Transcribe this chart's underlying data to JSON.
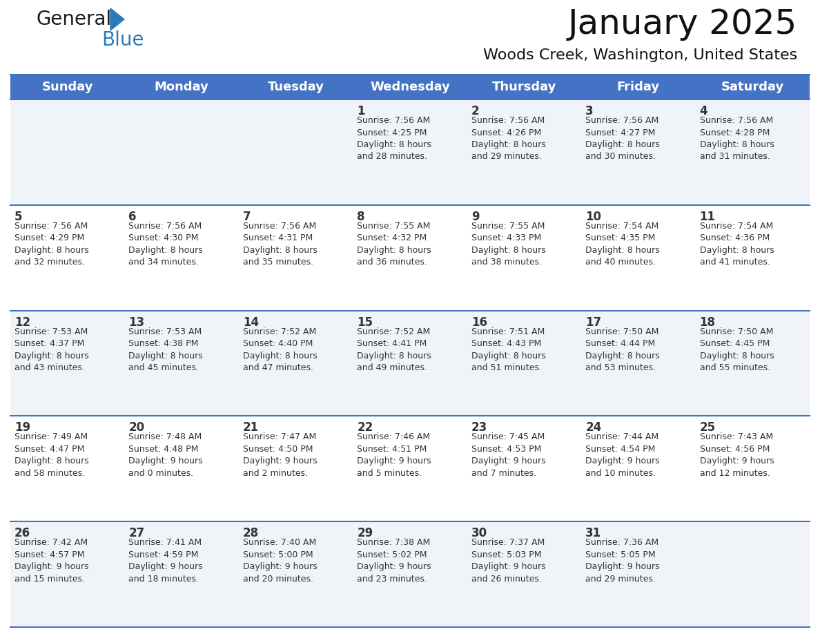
{
  "title": "January 2025",
  "subtitle": "Woods Creek, Washington, United States",
  "header_color": "#4472C4",
  "header_text_color": "#FFFFFF",
  "days_of_week": [
    "Sunday",
    "Monday",
    "Tuesday",
    "Wednesday",
    "Thursday",
    "Friday",
    "Saturday"
  ],
  "bg_color_light": "#F0F4F8",
  "bg_color_white": "#FFFFFF",
  "text_color": "#333333",
  "line_color": "#4472C4",
  "calendar_data": [
    [
      {
        "day": "",
        "info": ""
      },
      {
        "day": "",
        "info": ""
      },
      {
        "day": "",
        "info": ""
      },
      {
        "day": "1",
        "info": "Sunrise: 7:56 AM\nSunset: 4:25 PM\nDaylight: 8 hours\nand 28 minutes."
      },
      {
        "day": "2",
        "info": "Sunrise: 7:56 AM\nSunset: 4:26 PM\nDaylight: 8 hours\nand 29 minutes."
      },
      {
        "day": "3",
        "info": "Sunrise: 7:56 AM\nSunset: 4:27 PM\nDaylight: 8 hours\nand 30 minutes."
      },
      {
        "day": "4",
        "info": "Sunrise: 7:56 AM\nSunset: 4:28 PM\nDaylight: 8 hours\nand 31 minutes."
      }
    ],
    [
      {
        "day": "5",
        "info": "Sunrise: 7:56 AM\nSunset: 4:29 PM\nDaylight: 8 hours\nand 32 minutes."
      },
      {
        "day": "6",
        "info": "Sunrise: 7:56 AM\nSunset: 4:30 PM\nDaylight: 8 hours\nand 34 minutes."
      },
      {
        "day": "7",
        "info": "Sunrise: 7:56 AM\nSunset: 4:31 PM\nDaylight: 8 hours\nand 35 minutes."
      },
      {
        "day": "8",
        "info": "Sunrise: 7:55 AM\nSunset: 4:32 PM\nDaylight: 8 hours\nand 36 minutes."
      },
      {
        "day": "9",
        "info": "Sunrise: 7:55 AM\nSunset: 4:33 PM\nDaylight: 8 hours\nand 38 minutes."
      },
      {
        "day": "10",
        "info": "Sunrise: 7:54 AM\nSunset: 4:35 PM\nDaylight: 8 hours\nand 40 minutes."
      },
      {
        "day": "11",
        "info": "Sunrise: 7:54 AM\nSunset: 4:36 PM\nDaylight: 8 hours\nand 41 minutes."
      }
    ],
    [
      {
        "day": "12",
        "info": "Sunrise: 7:53 AM\nSunset: 4:37 PM\nDaylight: 8 hours\nand 43 minutes."
      },
      {
        "day": "13",
        "info": "Sunrise: 7:53 AM\nSunset: 4:38 PM\nDaylight: 8 hours\nand 45 minutes."
      },
      {
        "day": "14",
        "info": "Sunrise: 7:52 AM\nSunset: 4:40 PM\nDaylight: 8 hours\nand 47 minutes."
      },
      {
        "day": "15",
        "info": "Sunrise: 7:52 AM\nSunset: 4:41 PM\nDaylight: 8 hours\nand 49 minutes."
      },
      {
        "day": "16",
        "info": "Sunrise: 7:51 AM\nSunset: 4:43 PM\nDaylight: 8 hours\nand 51 minutes."
      },
      {
        "day": "17",
        "info": "Sunrise: 7:50 AM\nSunset: 4:44 PM\nDaylight: 8 hours\nand 53 minutes."
      },
      {
        "day": "18",
        "info": "Sunrise: 7:50 AM\nSunset: 4:45 PM\nDaylight: 8 hours\nand 55 minutes."
      }
    ],
    [
      {
        "day": "19",
        "info": "Sunrise: 7:49 AM\nSunset: 4:47 PM\nDaylight: 8 hours\nand 58 minutes."
      },
      {
        "day": "20",
        "info": "Sunrise: 7:48 AM\nSunset: 4:48 PM\nDaylight: 9 hours\nand 0 minutes."
      },
      {
        "day": "21",
        "info": "Sunrise: 7:47 AM\nSunset: 4:50 PM\nDaylight: 9 hours\nand 2 minutes."
      },
      {
        "day": "22",
        "info": "Sunrise: 7:46 AM\nSunset: 4:51 PM\nDaylight: 9 hours\nand 5 minutes."
      },
      {
        "day": "23",
        "info": "Sunrise: 7:45 AM\nSunset: 4:53 PM\nDaylight: 9 hours\nand 7 minutes."
      },
      {
        "day": "24",
        "info": "Sunrise: 7:44 AM\nSunset: 4:54 PM\nDaylight: 9 hours\nand 10 minutes."
      },
      {
        "day": "25",
        "info": "Sunrise: 7:43 AM\nSunset: 4:56 PM\nDaylight: 9 hours\nand 12 minutes."
      }
    ],
    [
      {
        "day": "26",
        "info": "Sunrise: 7:42 AM\nSunset: 4:57 PM\nDaylight: 9 hours\nand 15 minutes."
      },
      {
        "day": "27",
        "info": "Sunrise: 7:41 AM\nSunset: 4:59 PM\nDaylight: 9 hours\nand 18 minutes."
      },
      {
        "day": "28",
        "info": "Sunrise: 7:40 AM\nSunset: 5:00 PM\nDaylight: 9 hours\nand 20 minutes."
      },
      {
        "day": "29",
        "info": "Sunrise: 7:38 AM\nSunset: 5:02 PM\nDaylight: 9 hours\nand 23 minutes."
      },
      {
        "day": "30",
        "info": "Sunrise: 7:37 AM\nSunset: 5:03 PM\nDaylight: 9 hours\nand 26 minutes."
      },
      {
        "day": "31",
        "info": "Sunrise: 7:36 AM\nSunset: 5:05 PM\nDaylight: 9 hours\nand 29 minutes."
      },
      {
        "day": "",
        "info": ""
      }
    ]
  ],
  "logo_color_general": "#1a1a1a",
  "logo_color_blue": "#2B7BB9",
  "logo_triangle_color": "#2B7BB9",
  "title_fontsize": 36,
  "subtitle_fontsize": 16,
  "header_fontsize": 13,
  "day_number_fontsize": 12,
  "info_fontsize": 9
}
